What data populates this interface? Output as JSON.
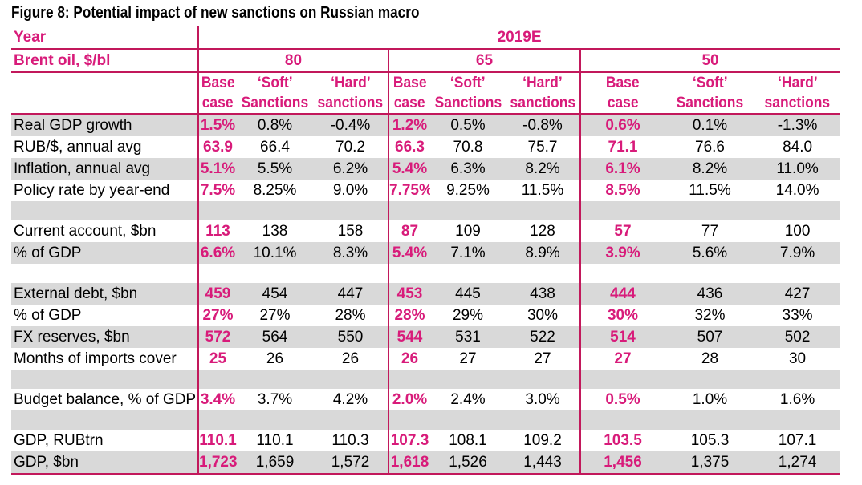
{
  "title": "Figure 8: Potential impact of new sanctions on Russian macro",
  "header": {
    "year_label": "Year",
    "year_value": "2019E",
    "brent_label": "Brent oil, $/bl",
    "brent_values": [
      "80",
      "65",
      "50"
    ],
    "scenario_line1": [
      "Base",
      "‘Soft’",
      "‘Hard’"
    ],
    "scenario_line2": [
      "case",
      "Sanctions",
      "sanctions"
    ]
  },
  "rows": [
    {
      "label": "Real GDP growth",
      "values": [
        "1.5%",
        "0.8%",
        "-0.4%",
        "1.2%",
        "0.5%",
        "-0.8%",
        "0.6%",
        "0.1%",
        "-1.3%"
      ]
    },
    {
      "label": "RUB/$, annual avg",
      "values": [
        "63.9",
        "66.4",
        "70.2",
        "66.3",
        "70.8",
        "75.7",
        "71.1",
        "76.6",
        "84.0"
      ]
    },
    {
      "label": "Inflation, annual avg",
      "values": [
        "5.1%",
        "5.5%",
        "6.2%",
        "5.4%",
        "6.3%",
        "8.2%",
        "6.1%",
        "8.2%",
        "11.0%"
      ]
    },
    {
      "label": "Policy rate by year-end",
      "values": [
        "7.5%",
        "8.25%",
        "9.0%",
        "7.75%",
        "9.25%",
        "11.5%",
        "8.5%",
        "11.5%",
        "14.0%"
      ]
    },
    {
      "label": "Current account, $bn",
      "values": [
        "113",
        "138",
        "158",
        "87",
        "109",
        "128",
        "57",
        "77",
        "100"
      ]
    },
    {
      "label": "% of GDP",
      "values": [
        "6.6%",
        "10.1%",
        "8.3%",
        "5.4%",
        "7.1%",
        "8.9%",
        "3.9%",
        "5.6%",
        "7.9%"
      ]
    },
    {
      "label": "External debt, $bn",
      "values": [
        "459",
        "454",
        "447",
        "453",
        "445",
        "438",
        "444",
        "436",
        "427"
      ]
    },
    {
      "label": "% of GDP",
      "values": [
        "27%",
        "27%",
        "28%",
        "28%",
        "29%",
        "30%",
        "30%",
        "32%",
        "33%"
      ]
    },
    {
      "label": "FX reserves, $bn",
      "values": [
        "572",
        "564",
        "550",
        "544",
        "531",
        "522",
        "514",
        "507",
        "502"
      ]
    },
    {
      "label": "Months of imports cover",
      "values": [
        "25",
        "26",
        "26",
        "26",
        "27",
        "27",
        "27",
        "28",
        "30"
      ]
    },
    {
      "label": "Budget balance, % of GDP",
      "values": [
        "3.4%",
        "3.7%",
        "4.2%",
        "2.0%",
        "2.4%",
        "3.0%",
        "0.5%",
        "1.0%",
        "1.6%"
      ]
    },
    {
      "label": "GDP, RUBtrn",
      "values": [
        "110.1",
        "110.1",
        "110.3",
        "107.3",
        "108.1",
        "109.2",
        "103.5",
        "105.3",
        "107.1"
      ]
    },
    {
      "label": "GDP, $bn",
      "values": [
        "1,723",
        "1,659",
        "1,572",
        "1,618",
        "1,526",
        "1,443",
        "1,456",
        "1,375",
        "1,274"
      ]
    }
  ],
  "colors": {
    "accent": "#d81b7a",
    "rule": "#c2185b",
    "shade": "#d9d9d9"
  }
}
